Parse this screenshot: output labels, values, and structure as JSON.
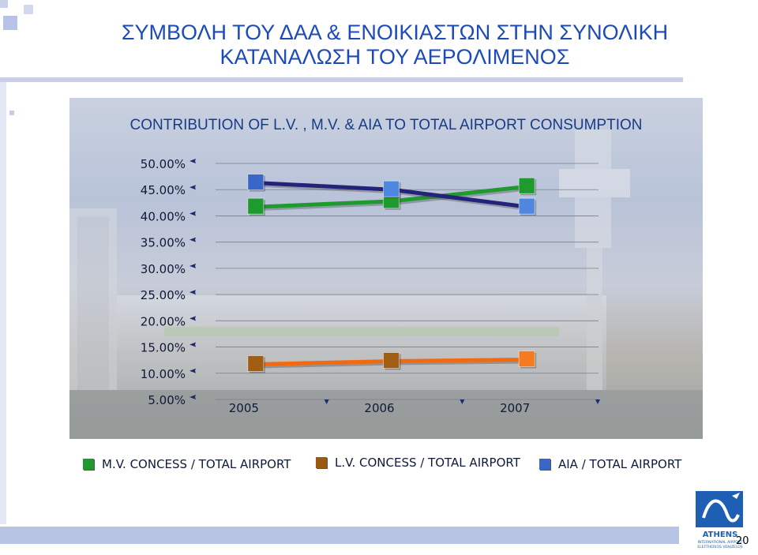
{
  "slide": {
    "title_line1": "ΣΥΜΒΟΛΗ ΤΟΥ ΔΑΑ & ΕΝΟΙΚΙΑΣΤΩΝ ΣΤΗΝ ΣΥΝΟΛΙΚΗ",
    "title_line2": "ΚΑΤΑΝΑΛΩΣΗ ΤΟΥ ΑΕΡΟΛΙΜΕΝΟΣ",
    "page_number": "20"
  },
  "logo": {
    "name": "ATHENS",
    "line1": "INTERNATIONAL AIRPORT",
    "line2": "ELEFTHERIOS VENIZELOS"
  },
  "colors": {
    "title": "#1c4bb8",
    "mv": "#1f9a2e",
    "lv": "#f06a12",
    "aia": "#3a66c8",
    "chart_title": "#1a3a8a"
  },
  "chart_data": {
    "type": "line",
    "title": "CONTRIBUTION OF L.V. , M.V. & AIA TO TOTAL AIRPORT CONSUMPTION",
    "xlabel": "",
    "ylabel": "",
    "categories": [
      "2005",
      "2006",
      "2007"
    ],
    "ylim": [
      5,
      50
    ],
    "y_ticks": [
      "50.00%",
      "45.00%",
      "40.00%",
      "35.00%",
      "30.00%",
      "25.00%",
      "20.00%",
      "15.00%",
      "10.00%",
      "5.00%"
    ],
    "grid": true,
    "legend_position": "bottom",
    "series": [
      {
        "name": "M.V. CONCESS / TOTAL AIRPORT",
        "values": [
          41.7,
          42.8,
          45.6
        ],
        "color": "#1f9a2e"
      },
      {
        "name": "L.V. CONCESS / TOTAL AIRPORT",
        "values": [
          11.7,
          12.3,
          12.6
        ],
        "color": "#f06a12"
      },
      {
        "name": "AIA / TOTAL AIRPORT",
        "values": [
          46.3,
          45.0,
          41.7
        ],
        "color": "#3a66c8"
      }
    ]
  }
}
